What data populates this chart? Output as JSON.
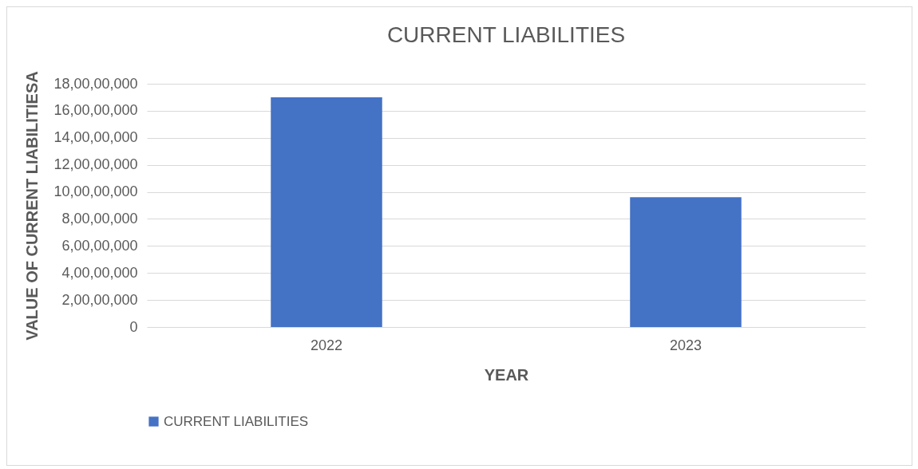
{
  "chart_data": {
    "type": "bar",
    "title": "CURRENT LIABILITIES",
    "xlabel": "YEAR",
    "ylabel": "VALUE OF CURRENT LIABILITIESA",
    "categories": [
      "2022",
      "2023"
    ],
    "series": [
      {
        "name": "CURRENT LIABILITIES",
        "color": "#4472c4",
        "values": [
          170000000,
          96000000
        ]
      }
    ],
    "ylim": [
      0,
      180000000
    ],
    "yticks": [
      {
        "value": 0,
        "label": "0"
      },
      {
        "value": 20000000,
        "label": "2,00,00,000"
      },
      {
        "value": 40000000,
        "label": "4,00,00,000"
      },
      {
        "value": 60000000,
        "label": "6,00,00,000"
      },
      {
        "value": 80000000,
        "label": "8,00,00,000"
      },
      {
        "value": 100000000,
        "label": "10,00,00,000"
      },
      {
        "value": 120000000,
        "label": "12,00,00,000"
      },
      {
        "value": 140000000,
        "label": "14,00,00,000"
      },
      {
        "value": 160000000,
        "label": "16,00,00,000"
      },
      {
        "value": 180000000,
        "label": "18,00,00,000"
      }
    ],
    "grid": "y",
    "legend": "bottom"
  }
}
